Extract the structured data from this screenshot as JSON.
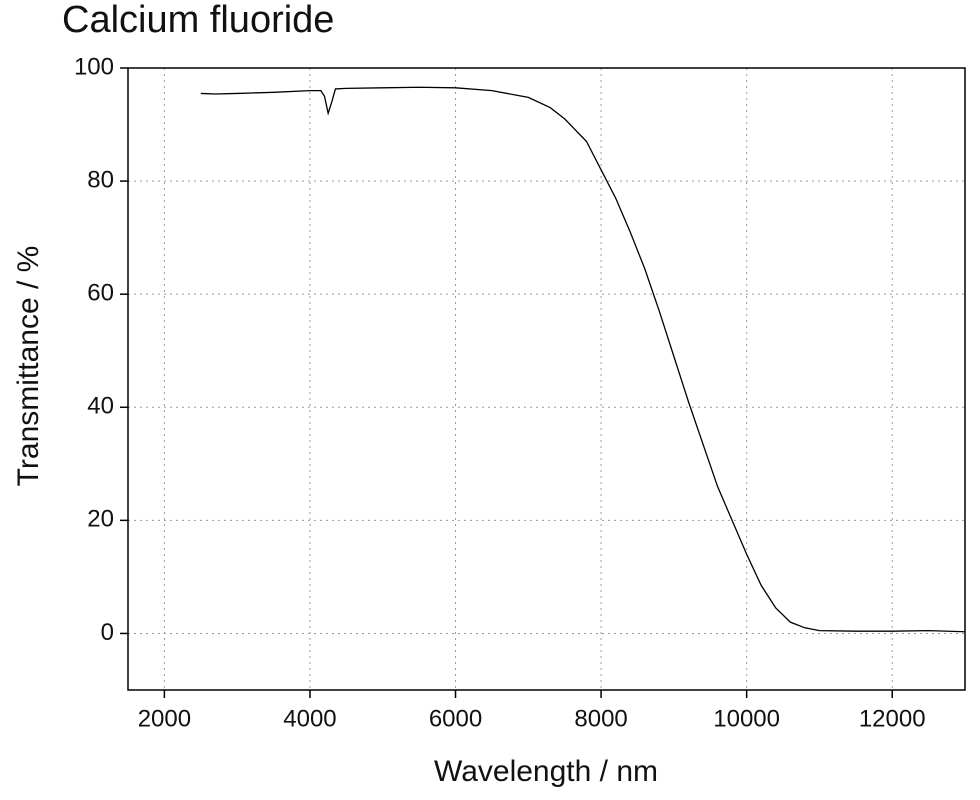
{
  "chart_data": {
    "type": "line",
    "title": "Calcium fluoride",
    "x_label": "Wavelength / nm",
    "y_label": "Transmittance / %",
    "xlim": [
      1500,
      13000
    ],
    "ylim": [
      -10,
      100
    ],
    "xticks": [
      2000,
      4000,
      6000,
      8000,
      10000,
      12000
    ],
    "yticks": [
      0,
      20,
      40,
      60,
      80,
      100
    ],
    "grid": true,
    "x": [
      2500,
      2700,
      3000,
      3500,
      4000,
      4150,
      4200,
      4250,
      4300,
      4350,
      4500,
      5000,
      5500,
      6000,
      6500,
      7000,
      7300,
      7500,
      7800,
      8000,
      8200,
      8400,
      8600,
      8800,
      9000,
      9200,
      9400,
      9600,
      9800,
      10000,
      10200,
      10400,
      10600,
      10800,
      11000,
      11500,
      12000,
      12500,
      13000
    ],
    "series": [
      {
        "color": "#000000",
        "values": [
          95.5,
          95.4,
          95.5,
          95.7,
          96,
          96,
          95,
          92,
          94,
          96.3,
          96.4,
          96.5,
          96.6,
          96.5,
          96,
          94.8,
          93,
          91,
          87,
          82,
          77,
          71,
          64.5,
          57,
          49,
          41,
          33.5,
          26,
          20,
          14,
          8.5,
          4.5,
          2,
          1,
          0.5,
          0.4,
          0.4,
          0.5,
          0.3
        ]
      }
    ]
  }
}
